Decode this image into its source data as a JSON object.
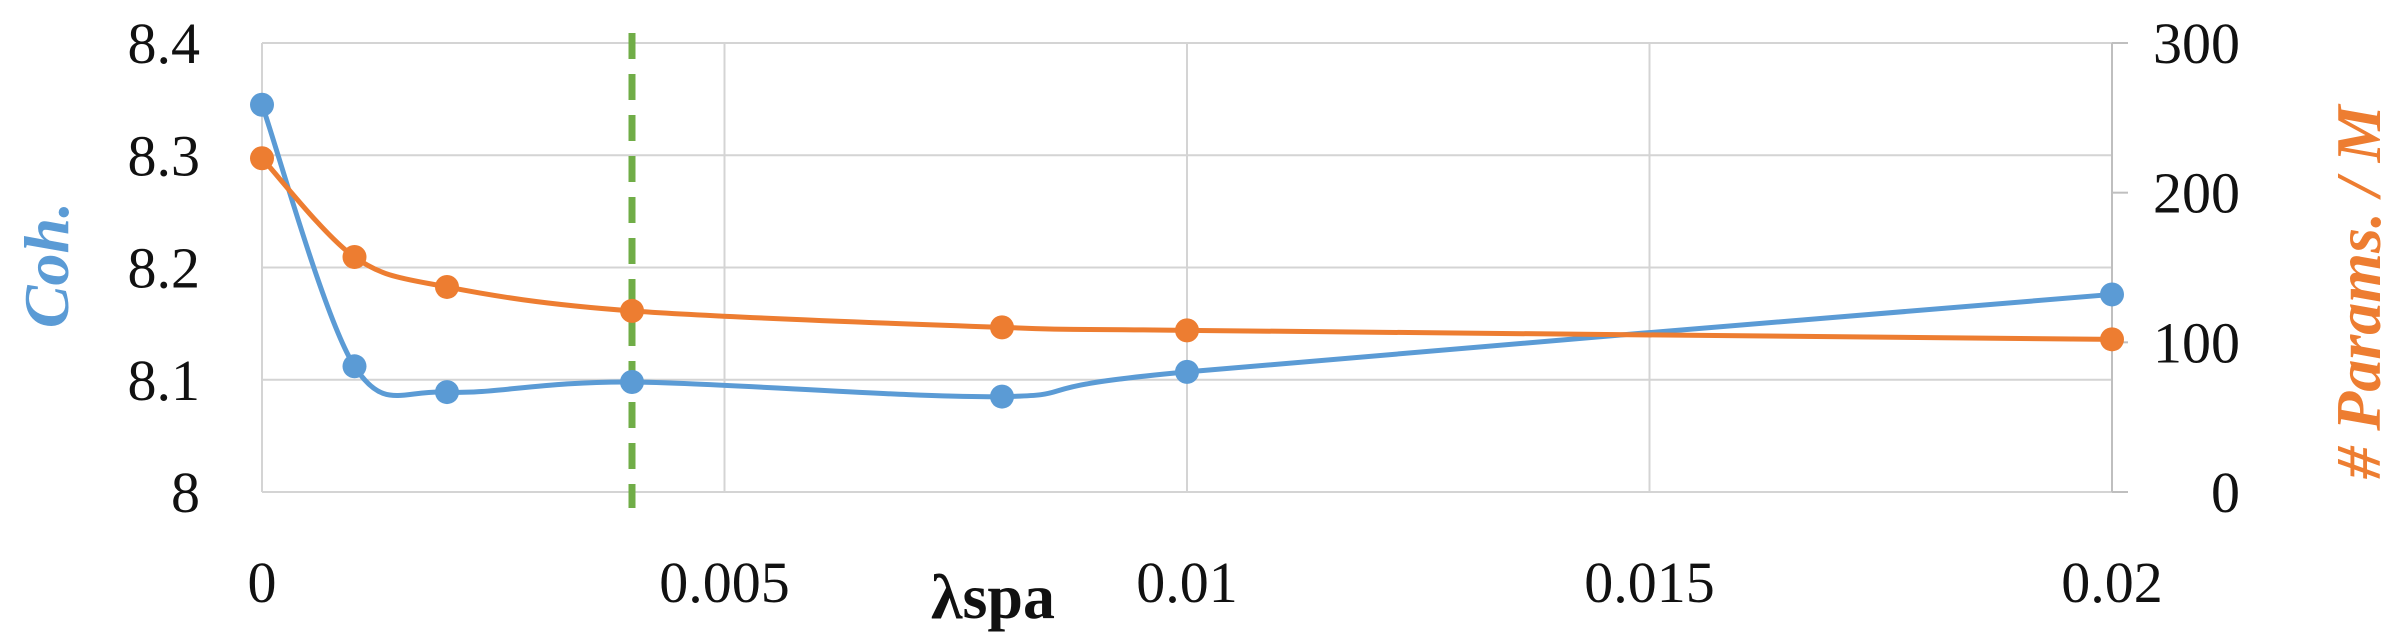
{
  "chart_data": {
    "type": "line",
    "title": "",
    "xlabel": "λspa",
    "x_ticks": [
      "0",
      "0.005",
      "0.01",
      "0.015",
      "0.02"
    ],
    "xlim": [
      0,
      0.02
    ],
    "grid": true,
    "legend": "none",
    "y_left": {
      "label": "Coh.",
      "ylim": [
        8,
        8.4
      ],
      "ticks": [
        "8",
        "8.1",
        "8.2",
        "8.3",
        "8.4"
      ],
      "color": "#5B9BD5"
    },
    "y_right": {
      "label": "# Params. / M",
      "ylim": [
        0,
        300
      ],
      "ticks": [
        "0",
        "100",
        "200",
        "300"
      ],
      "color": "#ED7D31"
    },
    "series": [
      {
        "axis": "left",
        "color": "#5B9BD5",
        "x": [
          0,
          0.001,
          0.002,
          0.004,
          0.008,
          0.01,
          0.02
        ],
        "values": [
          8.345,
          8.112,
          8.089,
          8.098,
          8.085,
          8.107,
          8.176
        ]
      },
      {
        "axis": "right",
        "color": "#ED7D31",
        "x": [
          0,
          0.001,
          0.002,
          0.004,
          0.008,
          0.01,
          0.02
        ],
        "values": [
          223,
          157,
          137,
          121,
          110,
          108,
          102
        ]
      }
    ],
    "reference_line": {
      "x": 0.004,
      "color": "#70AD47",
      "style": "dashed"
    }
  }
}
